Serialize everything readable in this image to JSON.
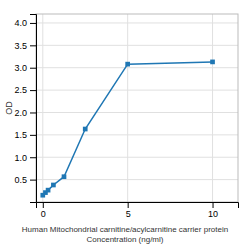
{
  "chart_data": {
    "type": "line",
    "x": [
      0.0,
      0.156,
      0.312,
      0.625,
      1.25,
      2.5,
      5.0,
      10.0
    ],
    "values": [
      0.152,
      0.21,
      0.265,
      0.38,
      0.565,
      1.63,
      3.08,
      3.13
    ],
    "marker": "square",
    "x_label": [
      "Human Mitochondrial carnitine/acylcarnitine carrier protein",
      "Concentration (ng/ml)"
    ],
    "y_label": "OD",
    "xlim": [
      -0.4,
      11.5
    ],
    "ylim": [
      0,
      4.2
    ],
    "xticks": [
      0,
      5,
      10
    ],
    "yticks": [
      0.5,
      {
        "value": 1.0,
        "label": "1.0"
      },
      1.5,
      {
        "value": 2.0,
        "label": "2.0"
      },
      2.5,
      {
        "value": 3.0,
        "label": "3.0"
      },
      3.5,
      {
        "value": 4.0,
        "label": "4.0"
      }
    ],
    "grid": true
  }
}
